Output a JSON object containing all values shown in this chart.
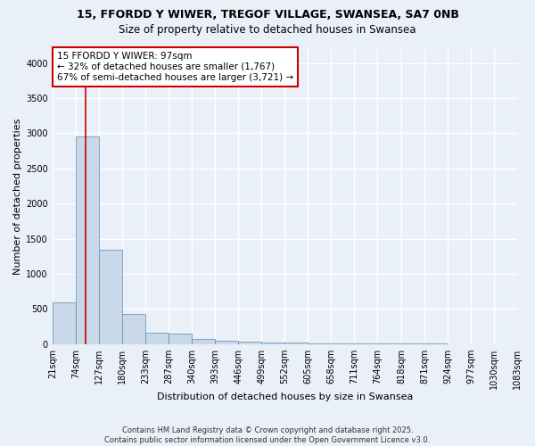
{
  "title": "15, FFORDD Y WIWER, TREGOF VILLAGE, SWANSEA, SA7 0NB",
  "subtitle": "Size of property relative to detached houses in Swansea",
  "xlabel": "Distribution of detached houses by size in Swansea",
  "ylabel": "Number of detached properties",
  "footer_line1": "Contains HM Land Registry data © Crown copyright and database right 2025.",
  "footer_line2": "Contains public sector information licensed under the Open Government Licence v3.0.",
  "annotation_line1": "15 FFORDD Y WIWER: 97sqm",
  "annotation_line2": "← 32% of detached houses are smaller (1,767)",
  "annotation_line3": "67% of semi-detached houses are larger (3,721) →",
  "property_sqm": 97,
  "bin_edges": [
    21,
    74,
    127,
    180,
    233,
    287,
    340,
    393,
    446,
    499,
    552,
    605,
    658,
    711,
    764,
    818,
    871,
    924,
    977,
    1030,
    1083
  ],
  "bin_labels": [
    "21sqm",
    "74sqm",
    "127sqm",
    "180sqm",
    "233sqm",
    "287sqm",
    "340sqm",
    "393sqm",
    "446sqm",
    "499sqm",
    "552sqm",
    "605sqm",
    "658sqm",
    "711sqm",
    "764sqm",
    "818sqm",
    "871sqm",
    "924sqm",
    "977sqm",
    "1030sqm",
    "1083sqm"
  ],
  "bar_heights": [
    590,
    2960,
    1340,
    430,
    158,
    155,
    70,
    45,
    30,
    28,
    20,
    15,
    10,
    8,
    5,
    4,
    3,
    2,
    1,
    1,
    0
  ],
  "bar_color": "#c8d8e8",
  "bar_edge_color": "#5a8ab0",
  "vline_x": 97,
  "vline_color": "#cc0000",
  "ylim": [
    0,
    4200
  ],
  "yticks": [
    0,
    500,
    1000,
    1500,
    2000,
    2500,
    3000,
    3500,
    4000
  ],
  "bg_color": "#eaf0f8",
  "grid_color": "#ffffff",
  "annotation_box_color": "#ffffff",
  "annotation_box_edge": "#cc0000",
  "title_fontsize": 9,
  "subtitle_fontsize": 8.5,
  "ylabel_fontsize": 8,
  "xlabel_fontsize": 8,
  "tick_fontsize": 7,
  "footer_fontsize": 6
}
